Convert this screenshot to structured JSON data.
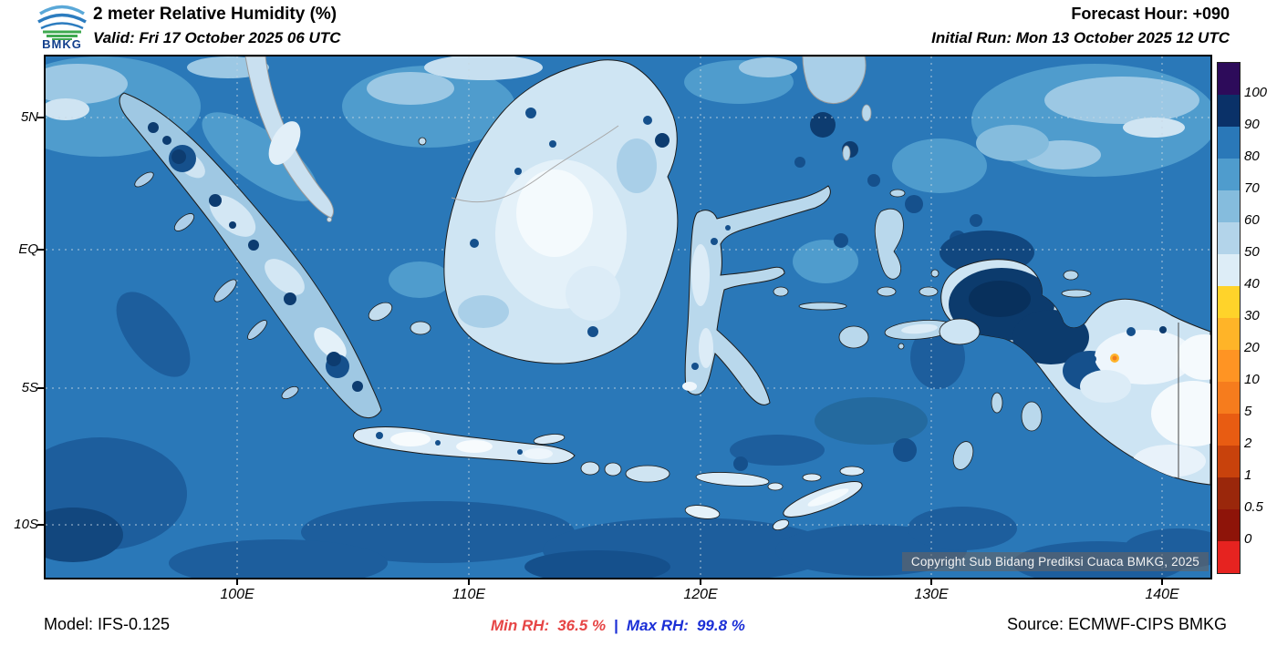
{
  "header": {
    "logo_text": "BMKG",
    "title": "2 meter Relative Humidity (%)",
    "valid": "Valid: Fri 17 October 2025 06 UTC",
    "forecast_hour": "Forecast Hour: +090",
    "initial_run": "Initial Run: Mon 13 October 2025 12 UTC"
  },
  "map": {
    "lat_labels": [
      "5N",
      "EQ",
      "5S",
      "10S"
    ],
    "lon_labels": [
      "100E",
      "110E",
      "120E",
      "130E",
      "140E"
    ],
    "copyright": "Copyright Sub Bidang Prediksi Cuaca BMKG, 2025"
  },
  "colorbar": {
    "unit": "%",
    "labels": [
      "100",
      "90",
      "80",
      "70",
      "60",
      "50",
      "40",
      "30",
      "20",
      "10",
      "5",
      "2",
      "1",
      "0.5",
      "0"
    ],
    "colors": [
      "#2d0b5a",
      "#0a3168",
      "#2a78b8",
      "#4f9ccd",
      "#85bcdd",
      "#b3d4ea",
      "#ddedf7",
      "#ffd32a",
      "#ffb428",
      "#ff9423",
      "#f67c1d",
      "#e85c12",
      "#c8420c",
      "#9a270b",
      "#8e1409",
      "#e62320"
    ]
  },
  "footer": {
    "model": "Model: IFS-0.125",
    "min_label": "Min RH:",
    "min_value": "36.5 %",
    "min_color": "#e64545",
    "separator": "|",
    "max_label": "Max RH:",
    "max_value": "99.8 %",
    "max_color": "#1b2fd6",
    "source": "Source: ECMWF-CIPS BMKG"
  }
}
